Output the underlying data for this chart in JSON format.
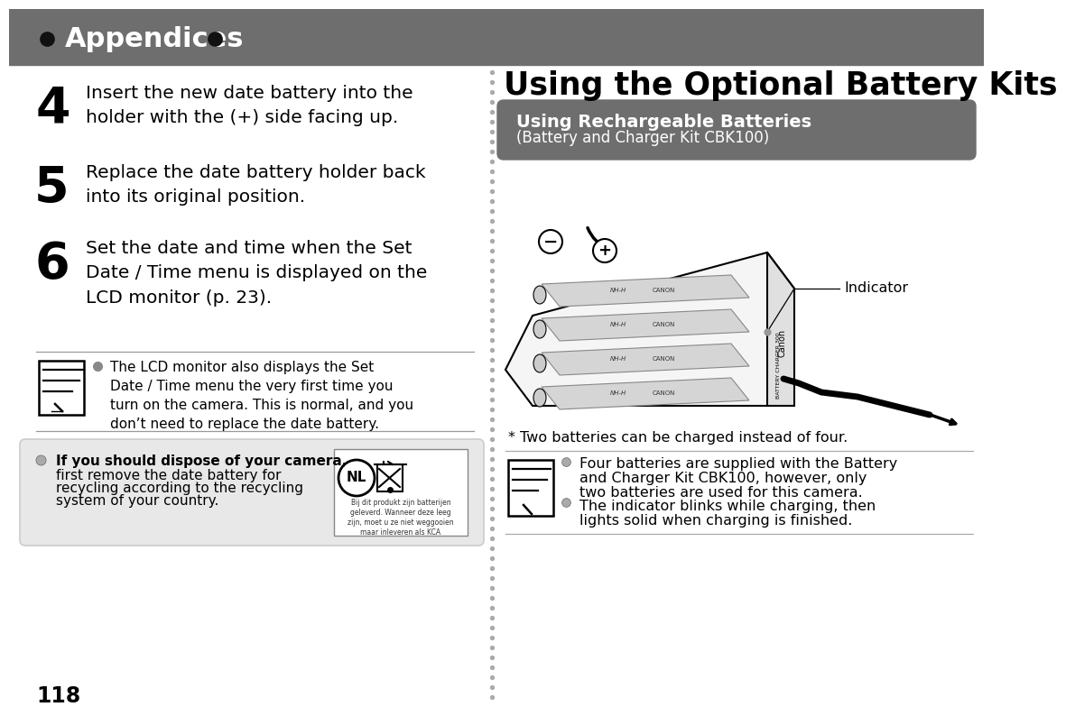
{
  "bg_color": "#ffffff",
  "header_bg": "#6e6e6e",
  "header_text_color": "#ffffff",
  "header_text": "Appendices",
  "right_title": "Using the Optional Battery Kits",
  "right_subtitle_bg": "#6e6e6e",
  "right_subtitle": "Using Rechargeable Batteries",
  "right_subtitle2": "(Battery and Charger Kit CBK100)",
  "right_subtitle_text_color": "#ffffff",
  "step4_num": "4",
  "step4_text": "Insert the new date battery into the\nholder with the (+) side facing up.",
  "step5_num": "5",
  "step5_text": "Replace the date battery holder back\ninto its original position.",
  "step6_num": "6",
  "step6_text": "Set the date and time when the Set\nDate / Time menu is displayed on the\nLCD monitor (p. 23).",
  "note1_text": "The LCD monitor also displays the Set\nDate / Time menu the very first time you\nturn on the camera. This is normal, and you\ndon’t need to replace the date battery.",
  "bottom_left_line1": "If you should dispose of your camera,",
  "bottom_left_line2": "first remove the date battery for",
  "bottom_left_line3": "recycling according to the recycling",
  "bottom_left_line4": "system of your country.",
  "nl_text": "NL",
  "nl_subtext": "Bij dit produkt zijn batterijen\ngeleverd. Wanneer deze leeg\nzijn, moet u ze niet weggooien\nmaar inleveren als KCA",
  "battery_caption": "* Two batteries can be charged instead of four.",
  "indicator_label": "Indicator",
  "note2_line1": "Four batteries are supplied with the Battery",
  "note2_line2": "and Charger Kit CBK100, however, only",
  "note2_line3": "two batteries are used for this camera.",
  "note3_line1": "The indicator blinks while charging, then",
  "note3_line2": "lights solid when charging is finished.",
  "page_num": "118"
}
